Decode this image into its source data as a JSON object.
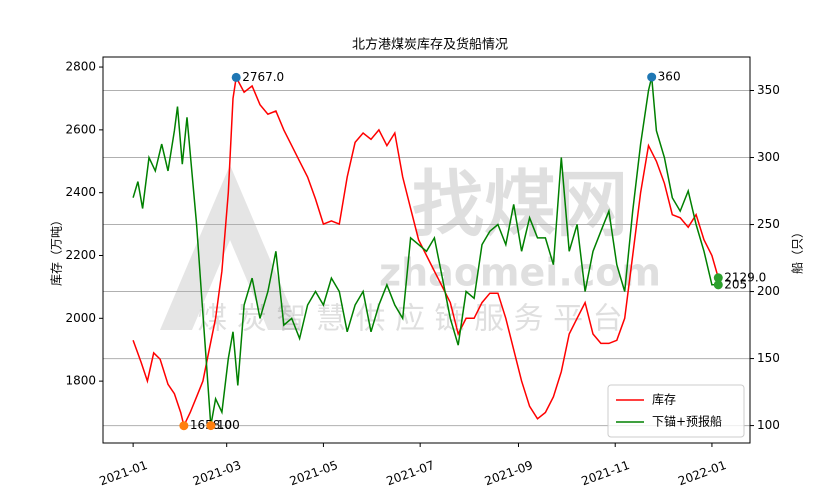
{
  "chart_data": {
    "type": "line",
    "title": "北方港煤炭库存及货船情况",
    "ylabel": "库存（万吨）",
    "y2label": "船（只）",
    "watermark": [
      "找煤网",
      "zhaomei.com",
      "煤 炭 智 慧 供 应 链 服 务 平 台"
    ],
    "xlim": [
      -19,
      389
    ],
    "ylim": [
      1603,
      2832
    ],
    "y2lim": [
      87,
      375
    ],
    "xticks": [
      {
        "value": 0,
        "label": "2021-01"
      },
      {
        "value": 59,
        "label": "2021-03"
      },
      {
        "value": 120,
        "label": "2021-05"
      },
      {
        "value": 181,
        "label": "2021-07"
      },
      {
        "value": 243,
        "label": "2021-09"
      },
      {
        "value": 304,
        "label": "2021-11"
      },
      {
        "value": 365,
        "label": "2022-01"
      }
    ],
    "yticks": [
      1800,
      2000,
      2200,
      2400,
      2600,
      2800
    ],
    "y2ticks": [
      100,
      150,
      200,
      250,
      300,
      350
    ],
    "grid": "y2",
    "legend": "lower right",
    "series": [
      {
        "name": "库存",
        "color": "#ff0000",
        "axis": "y",
        "x": [
          0,
          5,
          9,
          13,
          17,
          22,
          26,
          30,
          32,
          36,
          40,
          44,
          48,
          52,
          56,
          60,
          63,
          65,
          70,
          75,
          80,
          85,
          90,
          95,
          100,
          105,
          110,
          115,
          120,
          125,
          130,
          135,
          140,
          145,
          150,
          155,
          160,
          165,
          170,
          175,
          180,
          185,
          190,
          195,
          200,
          205,
          210,
          215,
          220,
          225,
          230,
          235,
          240,
          245,
          250,
          255,
          260,
          265,
          270,
          275,
          280,
          285,
          290,
          295,
          300,
          305,
          310,
          315,
          320,
          325,
          330,
          335,
          340,
          345,
          350,
          355,
          360,
          365,
          369
        ],
        "values": [
          1930,
          1860,
          1800,
          1890,
          1870,
          1790,
          1760,
          1700,
          1658,
          1700,
          1750,
          1800,
          1900,
          2000,
          2150,
          2400,
          2700,
          2767,
          2720,
          2740,
          2680,
          2650,
          2660,
          2600,
          2550,
          2500,
          2450,
          2380,
          2300,
          2310,
          2300,
          2450,
          2560,
          2590,
          2570,
          2600,
          2550,
          2590,
          2450,
          2350,
          2250,
          2200,
          2150,
          2100,
          2050,
          1950,
          2000,
          2000,
          2050,
          2080,
          2080,
          2000,
          1900,
          1800,
          1720,
          1680,
          1700,
          1750,
          1830,
          1950,
          2000,
          2050,
          1950,
          1920,
          1920,
          1930,
          2000,
          2200,
          2400,
          2550,
          2500,
          2430,
          2330,
          2320,
          2290,
          2330,
          2250,
          2200,
          2129
        ]
      },
      {
        "name": "下锚+预报船",
        "color": "#008000",
        "axis": "y2",
        "x": [
          0,
          3,
          6,
          10,
          14,
          18,
          22,
          26,
          28,
          31,
          34,
          37,
          40,
          43,
          46,
          49,
          52,
          56,
          60,
          63,
          66,
          70,
          75,
          80,
          85,
          90,
          95,
          100,
          105,
          110,
          115,
          120,
          125,
          130,
          135,
          140,
          145,
          150,
          155,
          160,
          165,
          170,
          175,
          180,
          185,
          190,
          195,
          200,
          205,
          210,
          215,
          220,
          225,
          230,
          235,
          240,
          245,
          250,
          255,
          260,
          265,
          270,
          275,
          280,
          285,
          290,
          295,
          300,
          305,
          310,
          315,
          320,
          325,
          327,
          330,
          335,
          340,
          345,
          350,
          355,
          360,
          365,
          369
        ],
        "values": [
          270,
          282,
          262,
          300,
          290,
          310,
          290,
          320,
          338,
          295,
          330,
          290,
          250,
          200,
          150,
          100,
          120,
          110,
          150,
          170,
          130,
          190,
          210,
          180,
          200,
          230,
          175,
          180,
          165,
          190,
          200,
          190,
          210,
          200,
          170,
          190,
          200,
          170,
          190,
          205,
          190,
          180,
          240,
          235,
          230,
          240,
          210,
          180,
          160,
          200,
          195,
          235,
          245,
          250,
          235,
          265,
          230,
          255,
          240,
          240,
          220,
          300,
          230,
          250,
          200,
          230,
          245,
          260,
          220,
          200,
          260,
          310,
          350,
          360,
          320,
          300,
          270,
          260,
          275,
          250,
          230,
          205,
          205
        ]
      }
    ],
    "annotations": [
      {
        "text": "2767.0",
        "x": 65,
        "y": 2767,
        "axis": "y",
        "color": "#1f77b4"
      },
      {
        "text": "1658.0",
        "x": 32,
        "y": 1658,
        "axis": "y",
        "color": "#ff7f0e"
      },
      {
        "text": "100",
        "x": 49,
        "y": 100,
        "axis": "y2",
        "color": "#ff7f0e"
      },
      {
        "text": "360",
        "x": 327,
        "y": 360,
        "axis": "y2",
        "color": "#1f77b4"
      },
      {
        "text": "2129.0",
        "x": 369,
        "y": 2129,
        "axis": "y",
        "color": "#2ca02c"
      },
      {
        "text": "205",
        "x": 369,
        "y": 205,
        "axis": "y2",
        "color": "#2ca02c"
      }
    ]
  }
}
